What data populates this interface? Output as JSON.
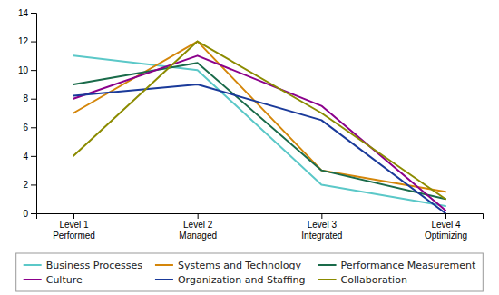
{
  "chart_data": {
    "type": "line",
    "categories": [
      "Level 1\nPerformed",
      "Level 2\nManaged",
      "Level 3\nIntegrated",
      "Level 4\nOptimizing"
    ],
    "series": [
      {
        "name": "Business Processes",
        "color": "#5BC8C8",
        "values": [
          11,
          10,
          2,
          0.5
        ]
      },
      {
        "name": "Systems and Technology",
        "color": "#D4860A",
        "values": [
          7,
          12,
          3,
          1.5
        ]
      },
      {
        "name": "Performance Measurement",
        "color": "#1A6B4A",
        "values": [
          9,
          10.5,
          3,
          1
        ]
      },
      {
        "name": "Culture",
        "color": "#8B008B",
        "values": [
          8,
          11,
          7.5,
          0.2
        ]
      },
      {
        "name": "Organization and Staffing",
        "color": "#1A3A9A",
        "values": [
          8.2,
          9,
          6.5,
          0
        ]
      },
      {
        "name": "Collaboration",
        "color": "#8B8B00",
        "values": [
          4,
          12,
          7,
          1
        ]
      }
    ],
    "ylim": [
      0,
      14
    ],
    "yticks": [
      0,
      2,
      4,
      6,
      8,
      10,
      12,
      14
    ],
    "grid": false,
    "legend": "bottom"
  }
}
